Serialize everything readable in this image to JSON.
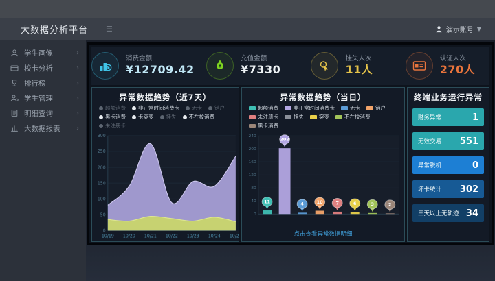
{
  "header": {
    "title": "大数据分析平台",
    "user": "演示账号"
  },
  "sidebar": {
    "items": [
      {
        "label": "学生画像",
        "icon": "student-portrait"
      },
      {
        "label": "校卡分析",
        "icon": "card-analysis"
      },
      {
        "label": "排行榜",
        "icon": "ranking"
      },
      {
        "label": "学生管理",
        "icon": "student-manage"
      },
      {
        "label": "明细查询",
        "icon": "detail-query"
      },
      {
        "label": "大数据报表",
        "icon": "report"
      }
    ]
  },
  "kpis": [
    {
      "label": "消费金额",
      "value": "¥12709.42",
      "icon": "consume-icon",
      "color": "#3fc4e8",
      "value_color": "#bfe6f5"
    },
    {
      "label": "充值金额",
      "value": "¥7330",
      "icon": "recharge-icon",
      "color": "#7ed321",
      "value_color": "#eef3f5"
    },
    {
      "label": "挂失人次",
      "value": "11人",
      "icon": "loss-report-icon",
      "color": "#e6c44a",
      "value_color": "#e6c44a"
    },
    {
      "label": "认证人次",
      "value": "270人",
      "icon": "certify-icon",
      "color": "#e8743c",
      "value_color": "#e8743c"
    }
  ],
  "chart_data": [
    {
      "type": "area",
      "title": "异常数据趋势（近7天）",
      "x": [
        "10/19",
        "10/20",
        "10/21",
        "10/22",
        "10/23",
        "10/24",
        "10/25"
      ],
      "ylim": [
        0,
        300
      ],
      "yticks": [
        0,
        50,
        100,
        150,
        200,
        250,
        300
      ],
      "grid": true,
      "legend_position": "top",
      "legend": [
        {
          "label": "超额消费",
          "dim": true
        },
        {
          "label": "非正常时间消费卡",
          "dim": false
        },
        {
          "label": "无卡",
          "dim": true
        },
        {
          "label": "销户",
          "dim": true
        },
        {
          "label": "黑卡消费",
          "dim": false
        },
        {
          "label": "卡突变",
          "dim": false
        },
        {
          "label": "挂失",
          "dim": true
        },
        {
          "label": "不在校消费",
          "dim": false
        },
        {
          "label": "未注册卡",
          "dim": true
        }
      ],
      "series": [
        {
          "name": "非正常时间消费卡",
          "color": "#a79fd6",
          "stroke": "#cfc9ef",
          "values": [
            80,
            140,
            275,
            88,
            155,
            140,
            235
          ]
        },
        {
          "name": "不在校消费",
          "color": "#c9d56b",
          "stroke": "#dde68f",
          "values": [
            35,
            30,
            45,
            38,
            30,
            42,
            28
          ]
        }
      ]
    },
    {
      "type": "bar",
      "title": "异常数据趋势（当日）",
      "ylim": [
        0,
        240
      ],
      "yticks": [
        0,
        40,
        80,
        120,
        160,
        200,
        240
      ],
      "grid": true,
      "legend_position": "top",
      "legend": [
        {
          "label": "超额消费",
          "color": "#3fbfb4"
        },
        {
          "label": "非正常时间消费卡",
          "color": "#b3a7e3"
        },
        {
          "label": "无卡",
          "color": "#5b9bd5"
        },
        {
          "label": "销户",
          "color": "#f2a46a"
        },
        {
          "label": "未注册卡",
          "color": "#e08080"
        },
        {
          "label": "挂失",
          "color": "#8a8f98"
        },
        {
          "label": "突变",
          "color": "#e8cf4a"
        },
        {
          "label": "不在校消费",
          "color": "#a2c45a"
        },
        {
          "label": "黑卡消费",
          "color": "#9a8578"
        }
      ],
      "categories": [
        "超额消费",
        "非正常时间消费卡",
        "无卡",
        "销户",
        "未注册卡",
        "突变",
        "不在校消费",
        "黑卡消费"
      ],
      "values": [
        11,
        202,
        4,
        10,
        7,
        6,
        3,
        2
      ],
      "colors": [
        "#3fbfb4",
        "#b3a7e3",
        "#5b9bd5",
        "#f2a46a",
        "#e08080",
        "#e8cf4a",
        "#a2c45a",
        "#9a8578"
      ],
      "footer": "点击查看异常数据明细"
    }
  ],
  "stats": {
    "title": "终端业务运行异常",
    "items": [
      {
        "label": "财务异常",
        "value": "1",
        "bg": "#2aa7ad"
      },
      {
        "label": "无效交易",
        "value": "551",
        "bg": "#2aa7ad"
      },
      {
        "label": "异常脱机",
        "value": "0",
        "bg": "#1d7fd4"
      },
      {
        "label": "坏卡统计",
        "value": "302",
        "bg": "#175a95"
      },
      {
        "label": "三天以上无轨迹",
        "value": "34",
        "bg": "#123f66"
      }
    ]
  }
}
